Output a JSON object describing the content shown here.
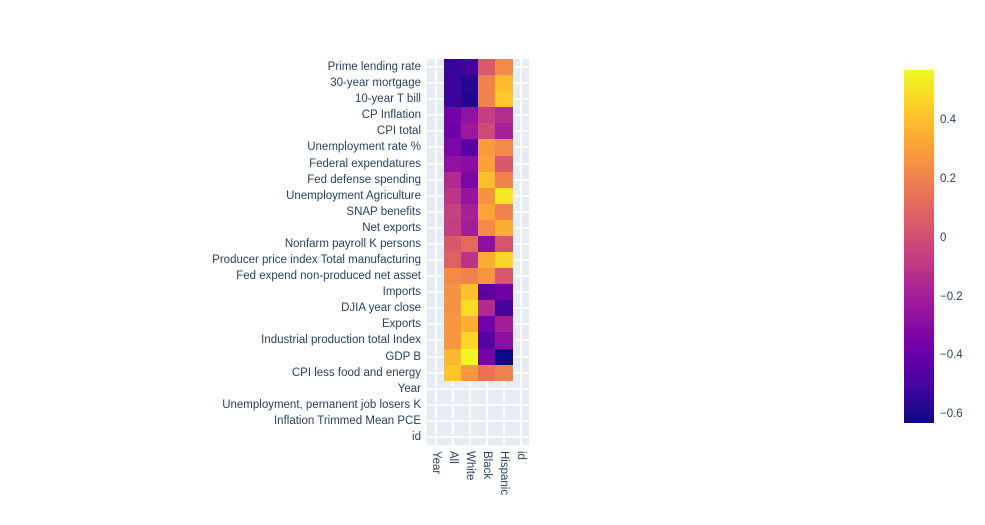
{
  "chart_data": {
    "type": "heatmap",
    "title": "",
    "xlabel": "",
    "ylabel": "",
    "x_categories": [
      "Year",
      "All",
      "White",
      "Black",
      "Hispanic",
      "id"
    ],
    "y_categories": [
      "Prime lending rate",
      "30-year mortgage",
      "10-year T bill",
      "CP Inflation",
      "CPI total",
      "Unemployment rate %",
      "Federal expendatures",
      "Fed defense spending",
      "Unemployment Agriculture",
      "SNAP benefits",
      "Net exports",
      "Nonfarm payroll K persons",
      "Producer price index Total manufacturing",
      "Fed expend non-produced net asset",
      "Imports",
      "DJIA year close",
      "Exports",
      "Industrial production total Index",
      "GDP B",
      "CPI less food and energy",
      "Year",
      "Unemployment, pernanent job losers K",
      "Inflation Trimmed Mean PCE",
      "id"
    ],
    "values": [
      [
        null,
        -0.53,
        -0.5,
        0.05,
        0.23,
        null
      ],
      [
        null,
        -0.52,
        -0.57,
        0.2,
        0.39,
        null
      ],
      [
        null,
        -0.52,
        -0.58,
        0.2,
        0.43,
        null
      ],
      [
        null,
        -0.36,
        -0.27,
        -0.07,
        -0.14,
        null
      ],
      [
        null,
        -0.38,
        -0.23,
        -0.02,
        -0.19,
        null
      ],
      [
        null,
        -0.33,
        -0.44,
        0.29,
        0.23,
        null
      ],
      [
        null,
        -0.27,
        -0.29,
        0.31,
        0.04,
        null
      ],
      [
        null,
        -0.15,
        -0.33,
        0.4,
        0.21,
        null
      ],
      [
        null,
        -0.1,
        -0.25,
        0.26,
        0.52,
        null
      ],
      [
        null,
        -0.05,
        -0.19,
        0.32,
        0.2,
        null
      ],
      [
        null,
        -0.07,
        -0.2,
        0.23,
        0.35,
        null
      ],
      [
        null,
        0.04,
        0.11,
        -0.28,
        0.02,
        null
      ],
      [
        null,
        0.07,
        -0.11,
        0.34,
        0.47,
        null
      ],
      [
        null,
        0.23,
        0.2,
        0.27,
        0.04,
        null
      ],
      [
        null,
        0.26,
        0.41,
        -0.42,
        -0.38,
        null
      ],
      [
        null,
        0.26,
        0.49,
        -0.15,
        -0.5,
        null
      ],
      [
        null,
        0.27,
        0.35,
        -0.37,
        -0.2,
        null
      ],
      [
        null,
        0.27,
        0.47,
        -0.45,
        -0.28,
        null
      ],
      [
        null,
        0.38,
        0.56,
        -0.35,
        -0.63,
        null
      ],
      [
        null,
        0.42,
        0.28,
        0.14,
        0.2,
        null
      ],
      [
        null,
        null,
        null,
        null,
        null,
        null
      ],
      [
        null,
        null,
        null,
        null,
        null,
        null
      ],
      [
        null,
        null,
        null,
        null,
        null,
        null
      ],
      [
        null,
        null,
        null,
        null,
        null,
        null
      ]
    ],
    "zmin": -0.63,
    "zmax": 0.57,
    "colorscale": "plasma",
    "colorscale_stops": [
      "#0d0887",
      "#46039f",
      "#7201a8",
      "#9c179e",
      "#bd3786",
      "#d8576b",
      "#ed7953",
      "#fb9f3a",
      "#fdca26",
      "#f0f921"
    ],
    "nan_color": "#e5ecf6",
    "grid_color": "#ffffff",
    "label_color": "#2a3f5f",
    "legend_position": "right",
    "grid": true,
    "colorbar": {
      "tick_values": [
        0.4,
        0.2,
        0,
        -0.2,
        -0.4,
        -0.6
      ],
      "tick_labels": [
        "0.4",
        "0.2",
        "0",
        "−0.2",
        "−0.4",
        "−0.6"
      ]
    }
  }
}
